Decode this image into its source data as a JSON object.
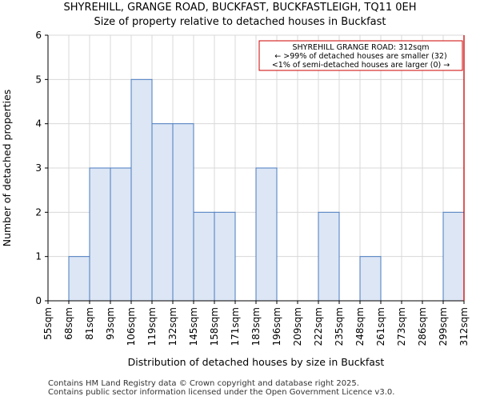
{
  "chart_data": {
    "type": "bar",
    "title": "SHYREHILL, GRANGE ROAD, BUCKFAST, BUCKFASTLEIGH, TQ11 0EH",
    "subtitle": "Size of property relative to detached houses in Buckfast",
    "xlabel": "Distribution of detached houses by size in Buckfast",
    "ylabel": "Number of detached properties",
    "ylim": [
      0,
      6
    ],
    "yticks": [
      "0",
      "1",
      "2",
      "3",
      "4",
      "5",
      "6"
    ],
    "bin_edges": [
      "55sqm",
      "68sqm",
      "81sqm",
      "93sqm",
      "106sqm",
      "119sqm",
      "132sqm",
      "145sqm",
      "158sqm",
      "171sqm",
      "183sqm",
      "196sqm",
      "209sqm",
      "222sqm",
      "235sqm",
      "248sqm",
      "261sqm",
      "273sqm",
      "286sqm",
      "299sqm",
      "312sqm"
    ],
    "values": [
      0,
      1,
      3,
      3,
      5,
      4,
      4,
      2,
      2,
      0,
      3,
      0,
      0,
      2,
      0,
      1,
      0,
      0,
      0,
      2
    ],
    "grid": true,
    "bar_color": "#dce6f5",
    "bar_edge_color": "#4a7bbf",
    "marker": {
      "bin_edge_index": 20,
      "color": "#cc0000"
    },
    "annotation": {
      "lines": [
        "SHYREHILL GRANGE ROAD: 312sqm",
        "← >99% of detached houses are smaller (32)",
        "<1% of semi-detached houses are larger (0) →"
      ]
    }
  },
  "footer": [
    "Contains HM Land Registry data © Crown copyright and database right 2025.",
    "Contains public sector information licensed under the Open Government Licence v3.0."
  ]
}
